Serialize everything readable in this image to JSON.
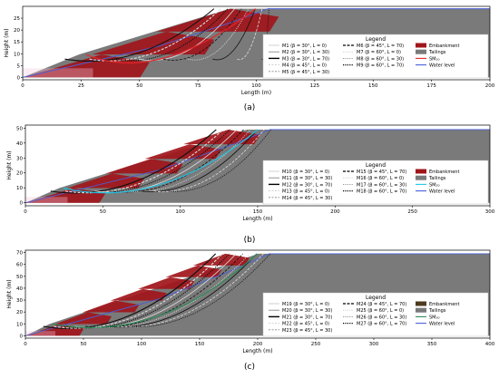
{
  "colors": {
    "embankment": "#a0151a",
    "tailings": "#7a7a7a",
    "sm_red": "#e8242a",
    "sm_cyan": "#1ec6e6",
    "sm_green": "#2e8b57",
    "water": "#4a5fd8",
    "embankment_brown": "#4e3a1e"
  },
  "panel_labels": [
    "(a)",
    "(b)",
    "(c)"
  ],
  "chart_data": [
    {
      "type": "area",
      "xlabel": "Length (m)",
      "ylabel": "Height (m)",
      "xlim": [
        0,
        200
      ],
      "ylim": [
        -1,
        30
      ],
      "xticks": [
        0,
        25,
        50,
        75,
        100,
        125,
        150,
        175,
        200
      ],
      "yticks": [
        0,
        5,
        10,
        15,
        20,
        25
      ],
      "legend_title": "Legend",
      "legend_position": "right",
      "legend_col1": [
        "M1 (β = 30°, L = 0)",
        "M2 (β = 30°, L = 30)",
        "M3 (β = 30°, L = 70)",
        "M4 (β = 45°, L = 0)",
        "M5 (β = 45°, L = 30)"
      ],
      "legend_col2": [
        "M6 (β = 45°, L = 70)",
        "M7 (β = 60°, L = 0)",
        "M8 (β = 60°, L = 30)",
        "M9 (β = 60°, L = 70)"
      ],
      "legend_col3": [
        "Embankment",
        "Tailings",
        "SM₁₀",
        "Water level"
      ],
      "sm_color_key": "sm_red",
      "raises": 3,
      "crest_height": 29,
      "crest_x": 105
    },
    {
      "type": "area",
      "xlabel": "Length (m)",
      "ylabel": "Height (m)",
      "xlim": [
        0,
        300
      ],
      "ylim": [
        -2,
        52
      ],
      "xticks": [
        0,
        50,
        100,
        150,
        200,
        250,
        300
      ],
      "yticks": [
        0,
        10,
        20,
        30,
        40,
        50
      ],
      "legend_title": "Legend",
      "legend_position": "right",
      "legend_col1": [
        "M10 (β = 30°, L = 0)",
        "M11 (β = 30°, L = 30)",
        "M12 (β = 30°, L = 70)",
        "M13 (β = 45°, L = 0)",
        "M14 (β = 45°, L = 30)"
      ],
      "legend_col2": [
        "M15 (β = 45°, L = 70)",
        "M16 (β = 60°, L = 0)",
        "M17 (β = 60°, L = 30)",
        "M18 (β = 60°, L = 70)"
      ],
      "legend_col3": [
        "Embankment",
        "Tailings",
        "SM₂₀",
        "Water level"
      ],
      "sm_color_key": "sm_cyan",
      "raises": 5,
      "crest_height": 49,
      "crest_x": 158
    },
    {
      "type": "area",
      "xlabel": "Length (m)",
      "ylabel": "Height (m)",
      "xlim": [
        0,
        400
      ],
      "ylim": [
        -2,
        72
      ],
      "xticks": [
        0,
        50,
        100,
        150,
        200,
        250,
        300,
        350,
        400
      ],
      "yticks": [
        0,
        10,
        20,
        30,
        40,
        50,
        60,
        70
      ],
      "legend_title": "Legend",
      "legend_position": "right",
      "legend_col1": [
        "M19 (β = 30°, L = 0)",
        "M20 (β = 30°, L = 30)",
        "M21 (β = 30°, L = 70)",
        "M22 (β = 45°, L = 0)",
        "M23 (β = 45°, L = 30)"
      ],
      "legend_col2": [
        "M24 (β = 45°, L = 70)",
        "M25 (β = 60°, L = 0)",
        "M26 (β = 60°, L = 30)",
        "M27 (β = 60°, L = 70)"
      ],
      "legend_col3": [
        "Embankment",
        "Tailings",
        "SM₃₀",
        "Water level"
      ],
      "sm_color_key": "sm_green",
      "raises": 7,
      "crest_height": 69,
      "crest_x": 210
    }
  ]
}
